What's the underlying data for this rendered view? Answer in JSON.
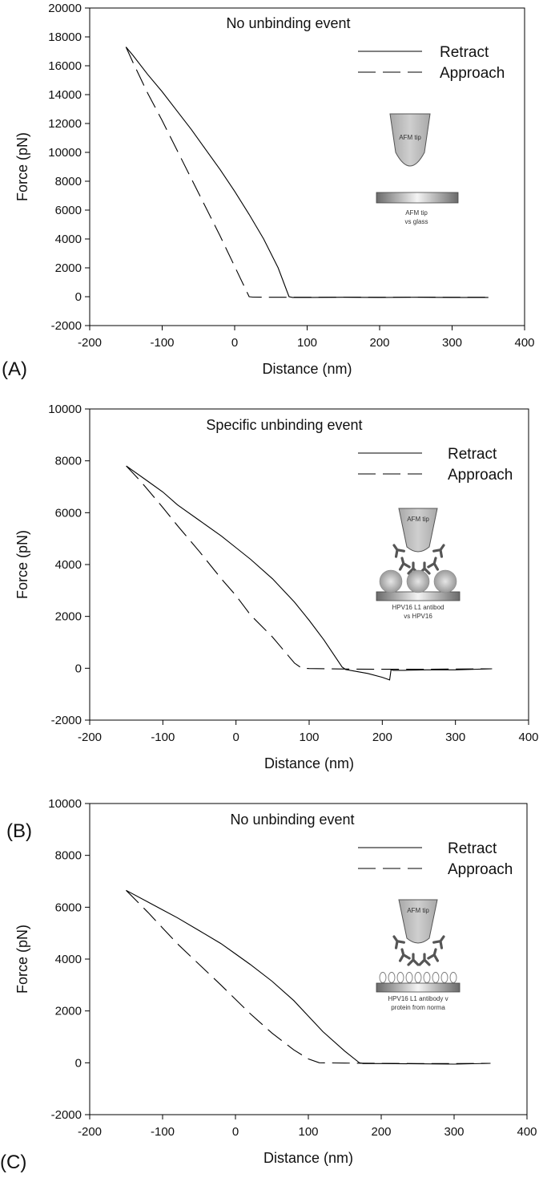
{
  "chart_data": [
    {
      "type": "line",
      "panel_label": "(A)",
      "title": "No unbinding event",
      "xlabel": "Distance (nm)",
      "ylabel": "Force (pN)",
      "xlim": [
        -200,
        400
      ],
      "ylim": [
        -2000,
        20000
      ],
      "xticks": [
        -200,
        -100,
        0,
        100,
        200,
        300,
        400
      ],
      "yticks": [
        -2000,
        0,
        2000,
        4000,
        6000,
        8000,
        10000,
        12000,
        14000,
        16000,
        18000,
        20000
      ],
      "legend_position": "top-right",
      "series": [
        {
          "name": "Retract",
          "style": "solid",
          "x": [
            -150,
            -140,
            -120,
            -100,
            -80,
            -60,
            -40,
            -20,
            0,
            20,
            40,
            60,
            75,
            80,
            100,
            150,
            200,
            250,
            300,
            350
          ],
          "y": [
            17300,
            16700,
            15400,
            14200,
            12900,
            11600,
            10200,
            8800,
            7300,
            5700,
            4000,
            2000,
            0,
            -50,
            -50,
            -40,
            -50,
            -40,
            -50,
            -50
          ]
        },
        {
          "name": "Approach",
          "style": "dashed",
          "x": [
            -150,
            -140,
            -120,
            -100,
            -80,
            -60,
            -40,
            -20,
            0,
            20,
            25,
            50,
            100,
            150,
            200,
            250,
            300,
            350
          ],
          "y": [
            17300,
            16200,
            14100,
            12200,
            10200,
            8200,
            6200,
            4200,
            2100,
            0,
            -30,
            -40,
            -40,
            -30,
            -40,
            -30,
            -40,
            -40
          ]
        }
      ],
      "inset": {
        "tip_label": "AFM tip",
        "caption_line1": "AFM tip",
        "caption_line2": "vs glass"
      }
    },
    {
      "type": "line",
      "panel_label": "(B)",
      "title": "Specific unbinding event",
      "xlabel": "Distance (nm)",
      "ylabel": "Force (pN)",
      "xlim": [
        -200,
        400
      ],
      "ylim": [
        -2000,
        10000
      ],
      "xticks": [
        -200,
        -100,
        0,
        100,
        200,
        300,
        400
      ],
      "yticks": [
        -2000,
        0,
        2000,
        4000,
        6000,
        8000,
        10000
      ],
      "legend_position": "top-right",
      "series": [
        {
          "name": "Retract",
          "style": "solid",
          "x": [
            -150,
            -120,
            -100,
            -80,
            -50,
            -20,
            0,
            20,
            50,
            80,
            100,
            120,
            145,
            150,
            160,
            180,
            200,
            210,
            212,
            215,
            230,
            260,
            300,
            350
          ],
          "y": [
            7800,
            7200,
            6800,
            6300,
            5700,
            5100,
            4650,
            4200,
            3450,
            2550,
            1850,
            1100,
            50,
            -50,
            -100,
            -200,
            -350,
            -450,
            -50,
            -80,
            -80,
            -60,
            -60,
            -20
          ]
        },
        {
          "name": "Approach",
          "style": "dashed",
          "x": [
            -150,
            -130,
            -100,
            -80,
            -50,
            -20,
            0,
            20,
            50,
            80,
            90,
            100,
            150,
            200,
            250,
            300,
            350
          ],
          "y": [
            7800,
            7200,
            6200,
            5500,
            4500,
            3450,
            2800,
            2050,
            1200,
            200,
            0,
            -10,
            -30,
            -40,
            -40,
            -30,
            -20
          ]
        }
      ],
      "inset": {
        "tip_label": "AFM tip",
        "caption_line1": "HPV16 L1 antibod",
        "caption_line2": "vs HPV16"
      }
    },
    {
      "type": "line",
      "panel_label": "(C)",
      "title": "No unbinding event",
      "xlabel": "Distance (nm)",
      "ylabel": "Force (pN)",
      "xlim": [
        -200,
        400
      ],
      "ylim": [
        -2000,
        10000
      ],
      "xticks": [
        -200,
        -100,
        0,
        100,
        200,
        300,
        400
      ],
      "yticks": [
        -2000,
        0,
        2000,
        4000,
        6000,
        8000,
        10000
      ],
      "legend_position": "top-right",
      "series": [
        {
          "name": "Retract",
          "style": "solid",
          "x": [
            -150,
            -120,
            -100,
            -80,
            -50,
            -20,
            0,
            20,
            50,
            80,
            100,
            120,
            150,
            170,
            175,
            200,
            250,
            300,
            350
          ],
          "y": [
            6650,
            6200,
            5900,
            5600,
            5100,
            4600,
            4200,
            3800,
            3150,
            2400,
            1800,
            1200,
            450,
            0,
            -30,
            -30,
            -40,
            -50,
            -20
          ]
        },
        {
          "name": "Approach",
          "style": "dashed",
          "x": [
            -150,
            -120,
            -100,
            -80,
            -50,
            -20,
            0,
            20,
            50,
            80,
            100,
            115,
            150,
            200,
            250,
            300,
            350
          ],
          "y": [
            6650,
            5800,
            5200,
            4600,
            3800,
            3000,
            2450,
            1900,
            1150,
            500,
            150,
            0,
            -10,
            -20,
            -30,
            -30,
            -20
          ]
        }
      ],
      "inset": {
        "tip_label": "AFM tip",
        "caption_line1": "HPV16 L1 antibody v",
        "caption_line2": "protein from norma"
      }
    }
  ]
}
